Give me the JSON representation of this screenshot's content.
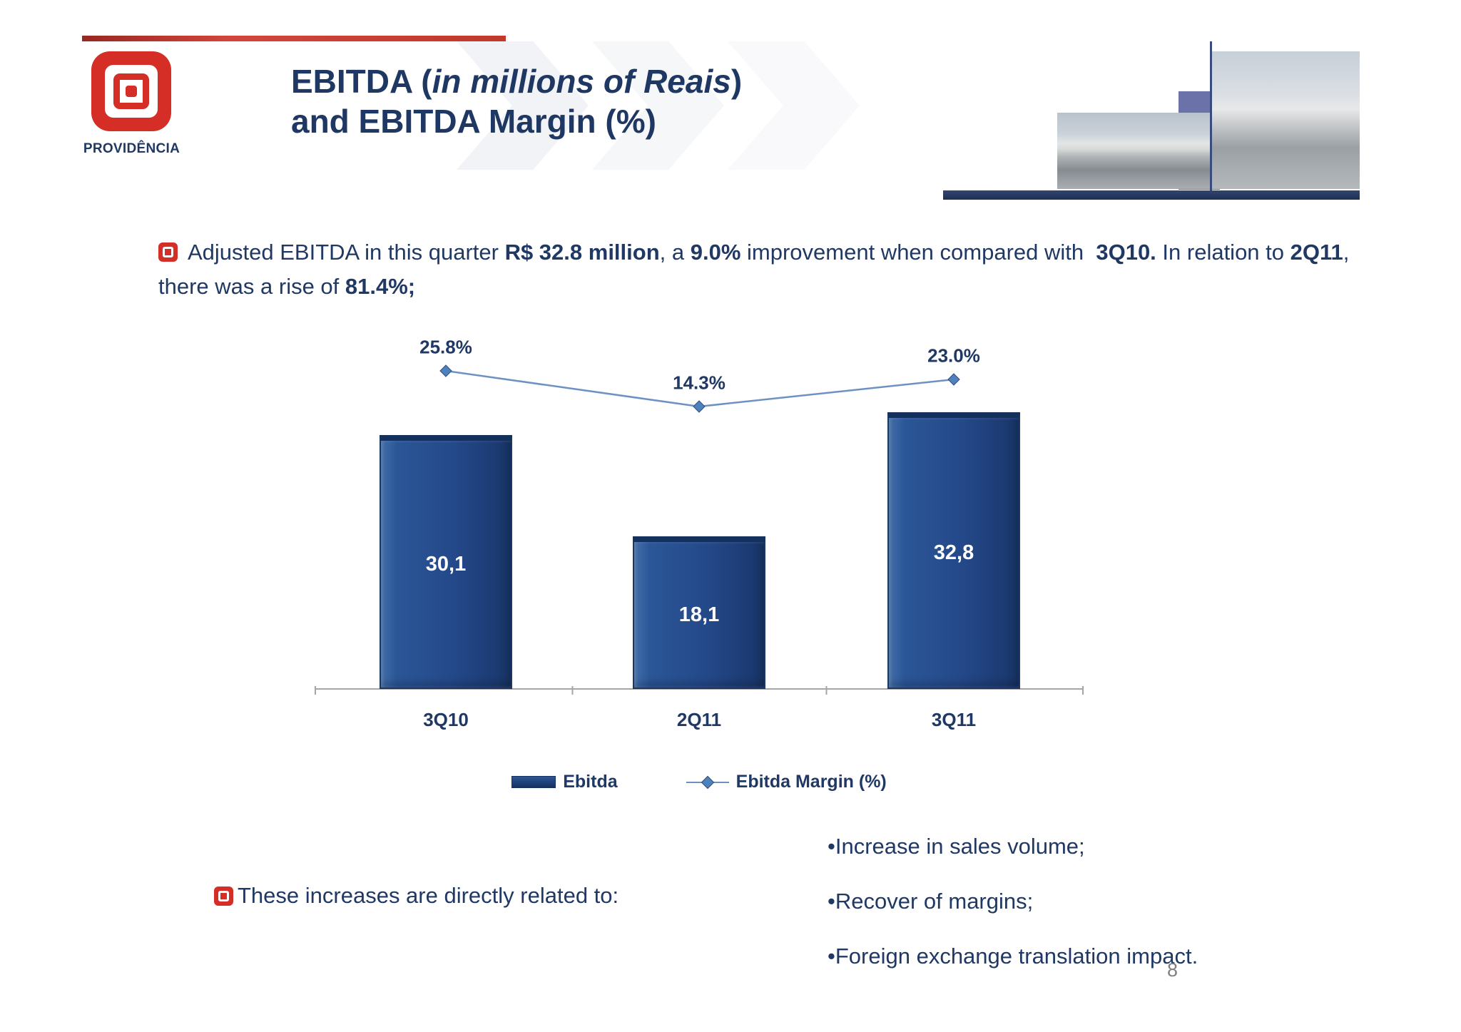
{
  "brand": {
    "name": "PROVIDÊNCIA"
  },
  "header": {
    "title_prefix": "EBITDA (",
    "title_italic": "in millions of Reais",
    "title_suffix": ")",
    "title_line2": "and EBITDA Margin (%)"
  },
  "intro": {
    "segments": [
      {
        "text": "Adjusted EBITDA in this quarter ",
        "bold": false
      },
      {
        "text": "R$ 32.8 million",
        "bold": true
      },
      {
        "text": ", a ",
        "bold": false
      },
      {
        "text": "9.0%",
        "bold": true
      },
      {
        "text": " improvement when compared with  ",
        "bold": false
      },
      {
        "text": "3Q10.",
        "bold": true
      },
      {
        "text": " In relation to ",
        "bold": false
      },
      {
        "text": "2Q11",
        "bold": true
      },
      {
        "text": ", there was a rise of ",
        "bold": false
      },
      {
        "text": "81.4%;",
        "bold": true
      }
    ]
  },
  "chart_data": {
    "type": "bar",
    "categories": [
      "3Q10",
      "2Q11",
      "3Q11"
    ],
    "series": [
      {
        "name": "Ebitda",
        "chart_type": "bar",
        "values": [
          30.1,
          18.1,
          32.8
        ],
        "labels": [
          "30,1",
          "18,1",
          "32,8"
        ],
        "color": "#1F4E96"
      },
      {
        "name": "Ebitda Margin (%)",
        "chart_type": "line",
        "values": [
          25.8,
          14.3,
          23.0
        ],
        "labels": [
          "25.8%",
          "14.3%",
          "23.0%"
        ],
        "color": "#4F81BD"
      }
    ],
    "legend_position": "bottom",
    "grid": false,
    "ylim": [
      0,
      42
    ]
  },
  "related": {
    "lead": "These increases are directly related to:",
    "bullets": [
      "•Increase in sales volume;",
      "•Recover of margins;",
      "•Foreign exchange translation impact."
    ]
  },
  "footer": {
    "page_number": "8"
  },
  "colors": {
    "navy": "#1F3864",
    "bar_blue": "#1F4E96",
    "line_blue": "#4F81BD",
    "red": "#D42E27"
  }
}
